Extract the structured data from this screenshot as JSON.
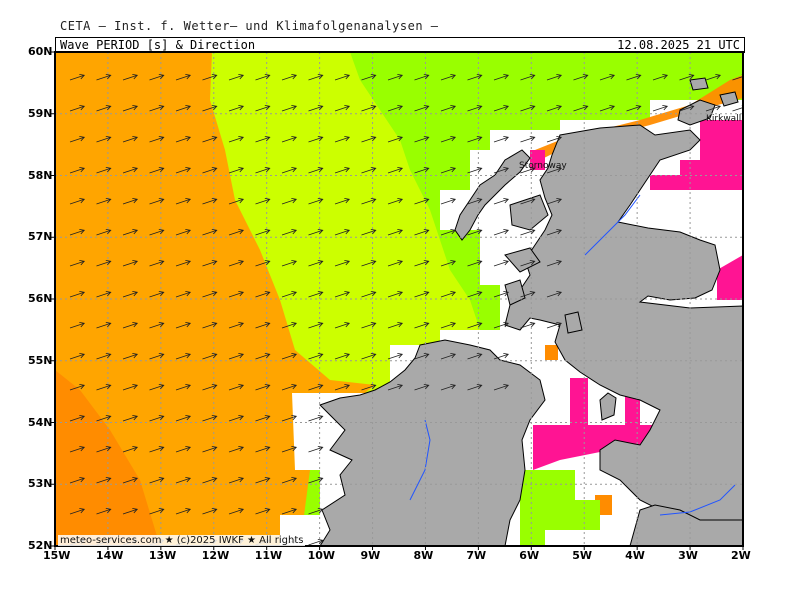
{
  "header": {
    "organization": "CETA — Inst. f. Wetter— und Klimafolgenanalysen —",
    "product": "Wave PERIOD [s] & Direction",
    "valid_time": "12.08.2025  21  UTC"
  },
  "footer": {
    "credit": "meteo-services.com ★ (c)2025 IWKF ★ All rights"
  },
  "places": [
    {
      "name": "Kirkwall"
    },
    {
      "name": "Stornoway"
    }
  ],
  "map": {
    "lon_range": [
      -15,
      -2
    ],
    "lat_range": [
      52,
      60
    ],
    "x_ticks": [
      "15W",
      "14W",
      "13W",
      "12W",
      "11W",
      "10W",
      "9W",
      "8W",
      "7W",
      "6W",
      "5W",
      "4W",
      "3W",
      "2W"
    ],
    "y_ticks": [
      "60N",
      "59N",
      "58N",
      "57N",
      "56N",
      "55N",
      "54N",
      "53N",
      "52N"
    ],
    "arrow_direction": "toward east-northeast",
    "colors": {
      "dark_orange": "#ff8c00",
      "orange": "#ffa500",
      "yellow_green": "#ccff00",
      "green": "#99ff00",
      "magenta": "#ff1493",
      "land": "#a9a9a9"
    }
  }
}
